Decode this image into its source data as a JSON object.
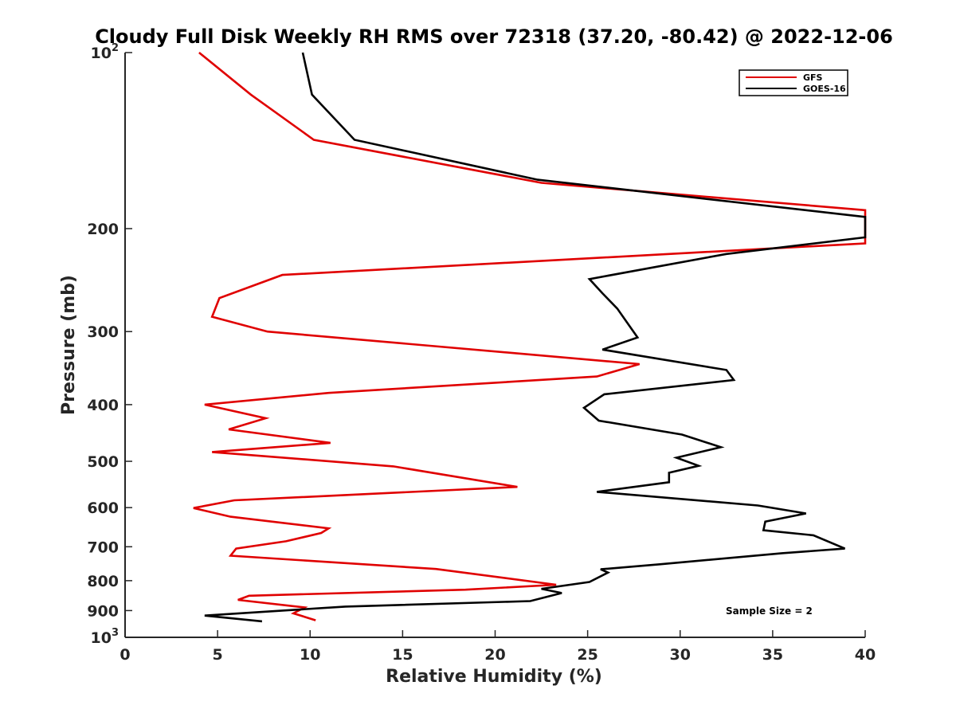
{
  "chart_data": {
    "type": "line",
    "title": "Cloudy Full Disk Weekly RH RMS over 72318 (37.20, -80.42) @ 2022-12-06",
    "xlabel": "Relative Humidity (%)",
    "ylabel": "Pressure (mb)",
    "xlim": [
      0,
      40
    ],
    "ylim": [
      100,
      1000
    ],
    "yscale": "log",
    "y_reversed": true,
    "x_ticks": [
      0,
      5,
      10,
      15,
      20,
      25,
      30,
      35,
      40
    ],
    "x_tick_labels": [
      "0",
      "5",
      "10",
      "15",
      "20",
      "25",
      "30",
      "35",
      "40"
    ],
    "y_ticks": [
      100,
      200,
      300,
      400,
      500,
      600,
      700,
      800,
      900,
      1000
    ],
    "y_tick_labels": [
      "10^2",
      "200",
      "300",
      "400",
      "500",
      "600",
      "700",
      "800",
      "900",
      "10^3"
    ],
    "legend_position": "top-right",
    "annotation": "Sample Size = 2",
    "series": [
      {
        "name": "GFS",
        "color": "#e00000",
        "points": [
          [
            4.0,
            100
          ],
          [
            6.8,
            118
          ],
          [
            10.2,
            141
          ],
          [
            22.5,
            167
          ],
          [
            40.0,
            186
          ],
          [
            40.0,
            212
          ],
          [
            8.5,
            240
          ],
          [
            5.1,
            263
          ],
          [
            4.7,
            283
          ],
          [
            7.7,
            300
          ],
          [
            27.8,
            341
          ],
          [
            25.5,
            358
          ],
          [
            11.0,
            382
          ],
          [
            4.3,
            400
          ],
          [
            7.6,
            422
          ],
          [
            5.6,
            441
          ],
          [
            11.1,
            465
          ],
          [
            4.7,
            482
          ],
          [
            14.5,
            510
          ],
          [
            21.2,
            553
          ],
          [
            5.9,
            583
          ],
          [
            3.7,
            601
          ],
          [
            5.7,
            622
          ],
          [
            11.0,
            651
          ],
          [
            10.6,
            663
          ],
          [
            8.7,
            685
          ],
          [
            6.0,
            705
          ],
          [
            5.7,
            725
          ],
          [
            16.8,
            764
          ],
          [
            23.3,
            813
          ],
          [
            18.4,
            829
          ],
          [
            6.7,
            849
          ],
          [
            6.1,
            863
          ],
          [
            9.7,
            889
          ],
          [
            9.1,
            910
          ],
          [
            10.3,
            935
          ]
        ]
      },
      {
        "name": "GOES-16",
        "color": "#000000",
        "points": [
          [
            9.6,
            100
          ],
          [
            10.1,
            118
          ],
          [
            12.4,
            141
          ],
          [
            22.3,
            165
          ],
          [
            40.0,
            191
          ],
          [
            40.0,
            207
          ],
          [
            32.5,
            221
          ],
          [
            25.1,
            244
          ],
          [
            25.8,
            258
          ],
          [
            26.6,
            274
          ],
          [
            27.7,
            307
          ],
          [
            25.8,
            322
          ],
          [
            32.5,
            349
          ],
          [
            32.9,
            363
          ],
          [
            25.9,
            384
          ],
          [
            24.8,
            405
          ],
          [
            25.6,
            426
          ],
          [
            30.1,
            450
          ],
          [
            32.2,
            473
          ],
          [
            29.8,
            493
          ],
          [
            31.0,
            509
          ],
          [
            29.4,
            523
          ],
          [
            29.4,
            543
          ],
          [
            25.5,
            564
          ],
          [
            34.2,
            595
          ],
          [
            36.8,
            614
          ],
          [
            34.6,
            634
          ],
          [
            34.5,
            656
          ],
          [
            37.2,
            669
          ],
          [
            38.9,
            705
          ],
          [
            35.5,
            718
          ],
          [
            28.9,
            750
          ],
          [
            25.7,
            765
          ],
          [
            26.1,
            775
          ],
          [
            25.1,
            804
          ],
          [
            22.5,
            826
          ],
          [
            23.6,
            840
          ],
          [
            21.9,
            867
          ],
          [
            11.9,
            886
          ],
          [
            4.3,
            918
          ],
          [
            7.4,
            939
          ]
        ]
      }
    ]
  }
}
